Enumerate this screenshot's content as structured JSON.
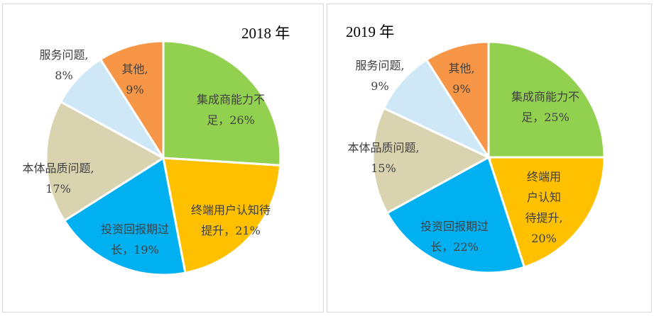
{
  "chart_data": [
    {
      "type": "pie",
      "title": "2018 年",
      "categories": [
        "集成商能力不足",
        "终端用户认知待提升",
        "投资回报期过长",
        "本体品质问题",
        "服务问题",
        "其他"
      ],
      "values": [
        26,
        21,
        19,
        17,
        8,
        9
      ],
      "unit": "%",
      "colors": [
        "#92d050",
        "#ffc000",
        "#00b0f0",
        "#d9d3b0",
        "#cfe8f8",
        "#f79646"
      ],
      "label_lines": [
        [
          "集成商能力不",
          "足，26%"
        ],
        [
          "终端用户认知待",
          "提升，21%"
        ],
        [
          "投资回报期过",
          "长，19%"
        ],
        [
          "本体品质问题,",
          "17%"
        ],
        [
          "服务问题,",
          "8%"
        ],
        [
          "其他,",
          "9%"
        ]
      ]
    },
    {
      "type": "pie",
      "title": "2019 年",
      "categories": [
        "集成商能力不足",
        "终端用户认知待提升",
        "投资回报期过长",
        "本体品质问题",
        "服务问题",
        "其他"
      ],
      "values": [
        25,
        20,
        22,
        15,
        9,
        9
      ],
      "unit": "%",
      "colors": [
        "#92d050",
        "#ffc000",
        "#00b0f0",
        "#d9d3b0",
        "#cfe8f8",
        "#f79646"
      ],
      "label_lines": [
        [
          "集成商能力不",
          "足，25%"
        ],
        [
          "终端用",
          "户认知",
          "待提升,",
          "20%"
        ],
        [
          "投资回报期过",
          "长，22%"
        ],
        [
          "本体品质问题,",
          "15%"
        ],
        [
          "服务问题,",
          "9%"
        ],
        [
          "其他,",
          "9%"
        ]
      ]
    }
  ]
}
